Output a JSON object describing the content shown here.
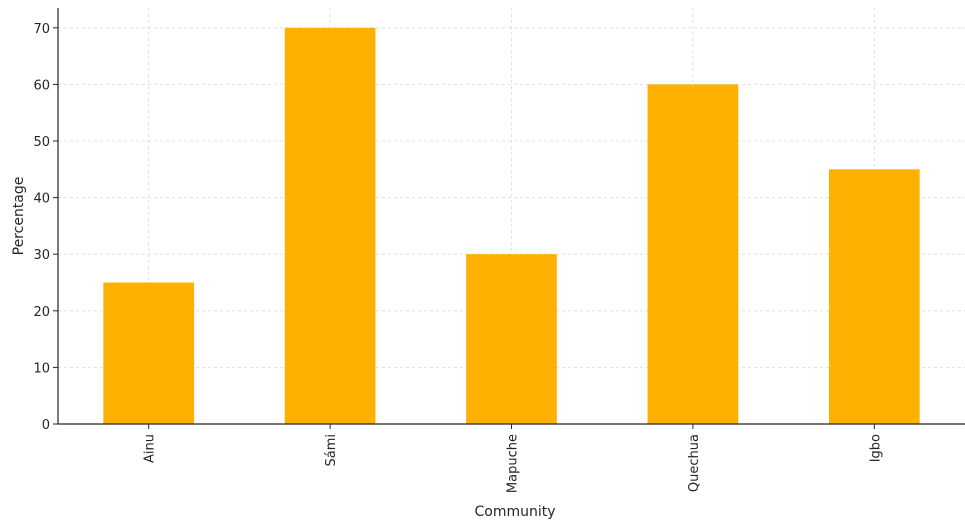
{
  "chart_data": {
    "type": "bar",
    "categories": [
      "Ainu",
      "Sámi",
      "Mapuche",
      "Quechua",
      "Igbo"
    ],
    "values": [
      25,
      70,
      30,
      60,
      45
    ],
    "xlabel": "Community",
    "ylabel": "Percentage",
    "ylim": [
      0,
      73.5
    ],
    "yticks": [
      0,
      10,
      20,
      30,
      40,
      50,
      60,
      70
    ],
    "grid": true,
    "bar_color": "#FFB000"
  }
}
